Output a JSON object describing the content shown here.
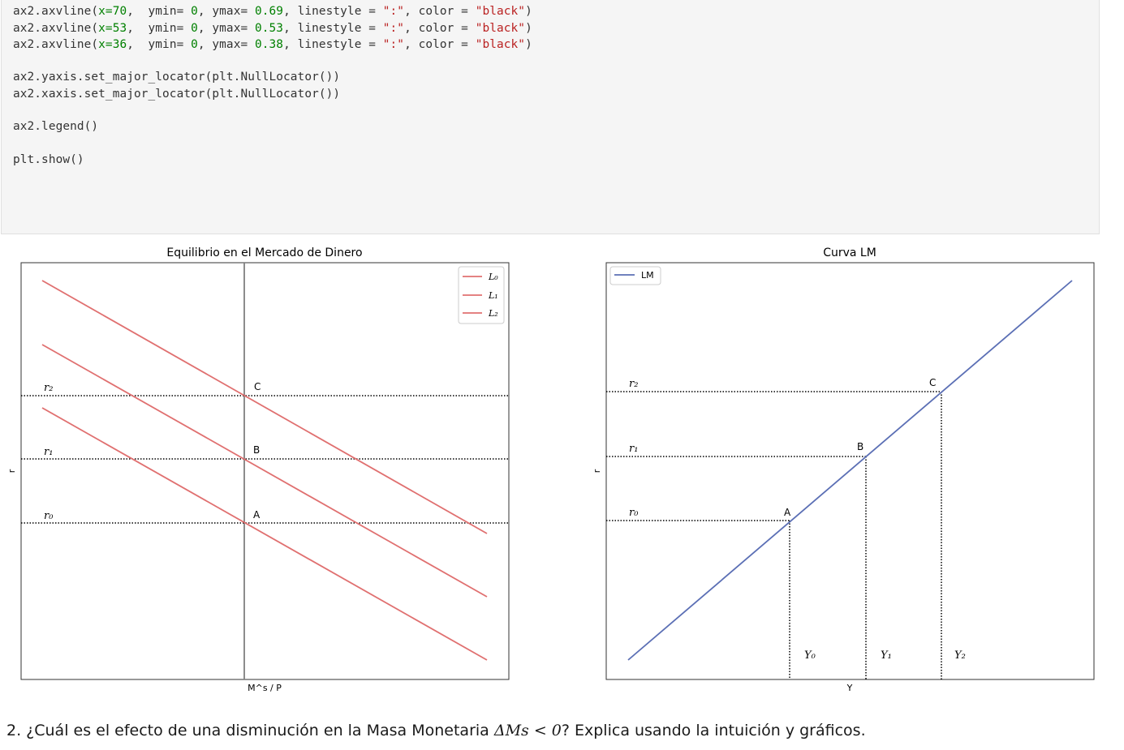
{
  "code": {
    "lines": [
      {
        "prefix": "ax2.axvline(",
        "arg": "x=70",
        "mid": ",  ymin= ",
        "n1": "0",
        "c1": ", ymax= ",
        "n2": "0.69",
        "c2": ", linestyle = ",
        "s1": "\":\"",
        "c3": ", color = ",
        "s2": "\"black\"",
        "end": ")"
      },
      {
        "prefix": "ax2.axvline(",
        "arg": "x=53",
        "mid": ",  ymin= ",
        "n1": "0",
        "c1": ", ymax= ",
        "n2": "0.53",
        "c2": ", linestyle = ",
        "s1": "\":\"",
        "c3": ", color = ",
        "s2": "\"black\"",
        "end": ")"
      },
      {
        "prefix": "ax2.axvline(",
        "arg": "x=36",
        "mid": ",  ymin= ",
        "n1": "0",
        "c1": ", ymax= ",
        "n2": "0.38",
        "c2": ", linestyle = ",
        "s1": "\":\"",
        "c3": ", color = ",
        "s2": "\"black\"",
        "end": ")"
      }
    ],
    "line4": "ax2.yaxis.set_major_locator(plt.NullLocator())",
    "line5": "ax2.xaxis.set_major_locator(plt.NullLocator())",
    "line6": "ax2.legend()",
    "line7": "plt.show()"
  },
  "colors": {
    "code_bg": "#f5f5f5",
    "red_line": "#e07070",
    "blue_line": "#5b6fb5"
  },
  "chart_data": [
    {
      "type": "line",
      "title": "Equilibrio en el Mercado de Dinero",
      "xlabel": "M^s / P",
      "ylabel": "r",
      "legend_position": "top-right",
      "grid": false,
      "series": [
        {
          "name": "L₀",
          "color": "#e07070"
        },
        {
          "name": "L₁",
          "color": "#e07070"
        },
        {
          "name": "L₂",
          "color": "#e07070"
        }
      ],
      "annotations": [
        "r₂",
        "r₁",
        "r₀",
        "C",
        "B",
        "A"
      ]
    },
    {
      "type": "line",
      "title": "Curva LM",
      "xlabel": "Y",
      "ylabel": "r",
      "legend_position": "top-left",
      "grid": false,
      "series": [
        {
          "name": "LM",
          "color": "#5b6fb5"
        }
      ],
      "annotations": [
        "r₂",
        "r₁",
        "r₀",
        "C",
        "B",
        "A",
        "Y₀",
        "Y₁",
        "Y₂"
      ]
    }
  ],
  "question": {
    "prefix": "2. ¿Cuál es el efecto de una disminución en la Masa Monetaria ",
    "math": "ΔMs < 0",
    "suffix": "? Explica usando la intuición y gráficos."
  }
}
